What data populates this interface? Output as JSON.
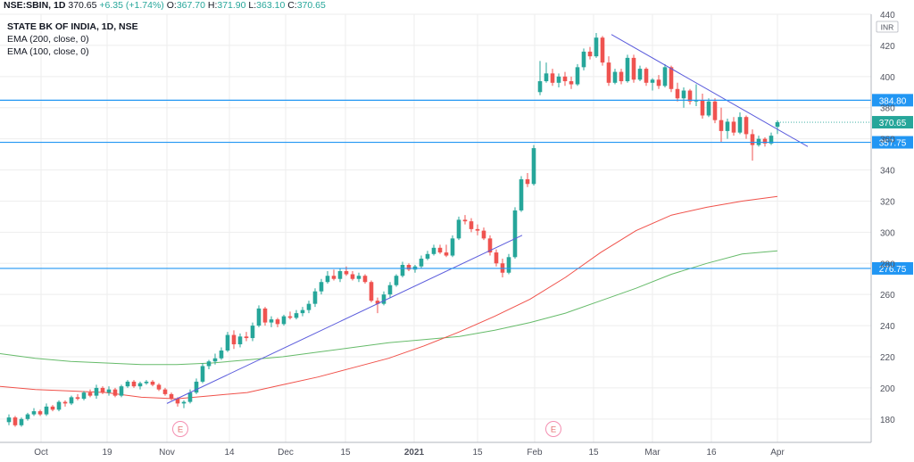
{
  "header": {
    "symbol": "NSE:SBIN, 1D",
    "last": "370.65",
    "change": "+6.35 (+1.74%)",
    "o_label": "O:",
    "o_value": "367.70",
    "h_label": "H:",
    "h_value": "371.90",
    "l_label": "L:",
    "l_value": "363.10",
    "c_label": "C:",
    "c_value": "370.65"
  },
  "legend": {
    "title": "STATE BK OF INDIA, 1D, NSE",
    "ema200": "EMA (200, close, 0)",
    "ema100": "EMA (100, close, 0)"
  },
  "colors": {
    "up": "#26a69a",
    "down": "#ef5350",
    "ema200": "#66bb6a",
    "ema100": "#f0514a",
    "hline": "#2196f3",
    "trend": "#5a5bdc",
    "grid": "#eeeeee"
  },
  "chart_data": {
    "type": "candlestick",
    "currency": "INR",
    "x_ticks": [
      "Oct",
      "19",
      "Nov",
      "14",
      "Dec",
      "15",
      "2021",
      "15",
      "Feb",
      "15",
      "Mar",
      "16",
      "Apr"
    ],
    "y_ticks": [
      180,
      200,
      220,
      240,
      260,
      280,
      300,
      320,
      340,
      360,
      380,
      400,
      420,
      440
    ],
    "ylim": [
      165,
      440
    ],
    "horizontal_levels": [
      {
        "label": "384.80",
        "value": 384.8
      },
      {
        "label": "357.75",
        "value": 357.75
      },
      {
        "label": "276.75",
        "value": 276.75
      }
    ],
    "last_price": {
      "label": "370.65",
      "value": 370.65
    },
    "event_markers": [
      "E",
      "E"
    ],
    "candles": [
      [
        178,
        183,
        176,
        181
      ],
      [
        181,
        182,
        175,
        176
      ],
      [
        176,
        181,
        175,
        180
      ],
      [
        180,
        184,
        179,
        183
      ],
      [
        183,
        187,
        182,
        185
      ],
      [
        185,
        186,
        182,
        183
      ],
      [
        183,
        190,
        182,
        188
      ],
      [
        188,
        189,
        185,
        186
      ],
      [
        186,
        192,
        185,
        191
      ],
      [
        191,
        192,
        188,
        190
      ],
      [
        190,
        195,
        189,
        194
      ],
      [
        194,
        196,
        192,
        193
      ],
      [
        193,
        198,
        192,
        197
      ],
      [
        197,
        199,
        194,
        195
      ],
      [
        195,
        202,
        193,
        200
      ],
      [
        200,
        201,
        196,
        197
      ],
      [
        197,
        201,
        195,
        199
      ],
      [
        199,
        200,
        194,
        195
      ],
      [
        195,
        202,
        194,
        201
      ],
      [
        201,
        205,
        200,
        204
      ],
      [
        204,
        205,
        200,
        201
      ],
      [
        201,
        204,
        199,
        203
      ],
      [
        203,
        205,
        202,
        204
      ],
      [
        204,
        205,
        201,
        202
      ],
      [
        202,
        203,
        198,
        199
      ],
      [
        199,
        200,
        195,
        196
      ],
      [
        196,
        197,
        192,
        193
      ],
      [
        193,
        194,
        188,
        190
      ],
      [
        190,
        192,
        187,
        191
      ],
      [
        191,
        199,
        190,
        197
      ],
      [
        197,
        206,
        196,
        204
      ],
      [
        204,
        216,
        203,
        214
      ],
      [
        214,
        218,
        212,
        217
      ],
      [
        217,
        222,
        215,
        219
      ],
      [
        219,
        226,
        218,
        224
      ],
      [
        224,
        236,
        223,
        234
      ],
      [
        234,
        237,
        225,
        228
      ],
      [
        228,
        235,
        226,
        233
      ],
      [
        233,
        236,
        230,
        232
      ],
      [
        232,
        242,
        230,
        240
      ],
      [
        240,
        253,
        239,
        251
      ],
      [
        251,
        252,
        240,
        242
      ],
      [
        242,
        246,
        239,
        244
      ],
      [
        244,
        245,
        239,
        241
      ],
      [
        241,
        247,
        240,
        246
      ],
      [
        246,
        249,
        244,
        245
      ],
      [
        245,
        250,
        244,
        248
      ],
      [
        248,
        252,
        246,
        250
      ],
      [
        250,
        256,
        248,
        254
      ],
      [
        254,
        264,
        252,
        262
      ],
      [
        262,
        270,
        260,
        268
      ],
      [
        268,
        275,
        267,
        272
      ],
      [
        272,
        276,
        269,
        270
      ],
      [
        270,
        277,
        268,
        275
      ],
      [
        275,
        278,
        272,
        273
      ],
      [
        273,
        275,
        269,
        270
      ],
      [
        270,
        274,
        268,
        272
      ],
      [
        272,
        273,
        267,
        268
      ],
      [
        268,
        269,
        255,
        256
      ],
      [
        256,
        258,
        248,
        254
      ],
      [
        254,
        262,
        253,
        260
      ],
      [
        260,
        268,
        258,
        266
      ],
      [
        266,
        273,
        265,
        272
      ],
      [
        272,
        281,
        271,
        279
      ],
      [
        279,
        280,
        275,
        276
      ],
      [
        276,
        279,
        274,
        278
      ],
      [
        278,
        285,
        277,
        283
      ],
      [
        283,
        288,
        282,
        286
      ],
      [
        286,
        292,
        285,
        290
      ],
      [
        290,
        292,
        286,
        287
      ],
      [
        287,
        292,
        284,
        285
      ],
      [
        285,
        298,
        284,
        296
      ],
      [
        296,
        310,
        295,
        308
      ],
      [
        308,
        311,
        305,
        307
      ],
      [
        307,
        309,
        300,
        302
      ],
      [
        302,
        305,
        298,
        301
      ],
      [
        301,
        303,
        295,
        296
      ],
      [
        296,
        298,
        285,
        287
      ],
      [
        287,
        289,
        278,
        280
      ],
      [
        280,
        283,
        271,
        274
      ],
      [
        274,
        286,
        273,
        284
      ],
      [
        284,
        316,
        283,
        314
      ],
      [
        314,
        336,
        313,
        334
      ],
      [
        334,
        338,
        329,
        331
      ],
      [
        331,
        356,
        330,
        354
      ],
      [
        390,
        410,
        388,
        397
      ],
      [
        397,
        409,
        396,
        402
      ],
      [
        402,
        405,
        394,
        396
      ],
      [
        396,
        402,
        393,
        400
      ],
      [
        400,
        403,
        394,
        397
      ],
      [
        397,
        400,
        392,
        395
      ],
      [
        395,
        408,
        394,
        406
      ],
      [
        406,
        418,
        404,
        416
      ],
      [
        416,
        419,
        411,
        413
      ],
      [
        413,
        428,
        412,
        425
      ],
      [
        425,
        426,
        407,
        409
      ],
      [
        409,
        413,
        394,
        396
      ],
      [
        396,
        405,
        395,
        403
      ],
      [
        403,
        405,
        395,
        397
      ],
      [
        397,
        414,
        396,
        412
      ],
      [
        412,
        414,
        396,
        398
      ],
      [
        398,
        407,
        397,
        405
      ],
      [
        405,
        406,
        394,
        396
      ],
      [
        396,
        399,
        391,
        398
      ],
      [
        398,
        401,
        392,
        394
      ],
      [
        394,
        408,
        393,
        406
      ],
      [
        406,
        407,
        390,
        392
      ],
      [
        392,
        396,
        384,
        386
      ],
      [
        386,
        393,
        380,
        391
      ],
      [
        391,
        392,
        382,
        384
      ],
      [
        384,
        395,
        381,
        385
      ],
      [
        385,
        389,
        373,
        375
      ],
      [
        375,
        386,
        374,
        384
      ],
      [
        384,
        386,
        370,
        372
      ],
      [
        372,
        380,
        358,
        365
      ],
      [
        365,
        373,
        360,
        371
      ],
      [
        371,
        374,
        362,
        364
      ],
      [
        364,
        377,
        363,
        374
      ],
      [
        374,
        375,
        360,
        363
      ],
      [
        363,
        366,
        346,
        356
      ],
      [
        356,
        362,
        355,
        360
      ],
      [
        360,
        361,
        355,
        357
      ],
      [
        357,
        364,
        356,
        362
      ],
      [
        367.7,
        371.9,
        363.1,
        370.65
      ]
    ],
    "ema200": [
      222,
      219,
      217,
      216,
      215,
      215,
      216,
      218,
      220,
      223,
      226,
      229,
      231,
      233,
      237,
      242,
      248,
      256,
      264,
      273,
      280,
      286,
      288
    ],
    "ema100": [
      201,
      199,
      198,
      197,
      194,
      193,
      195,
      197,
      202,
      207,
      213,
      219,
      227,
      236,
      246,
      257,
      271,
      287,
      301,
      311,
      316,
      320,
      323
    ],
    "trend_lines": [
      {
        "from": [
          196,
          190
        ],
        "to": [
          304,
          298
        ]
      },
      {
        "from": [
          401,
          427
        ],
        "to": [
          451,
          355
        ]
      }
    ]
  }
}
